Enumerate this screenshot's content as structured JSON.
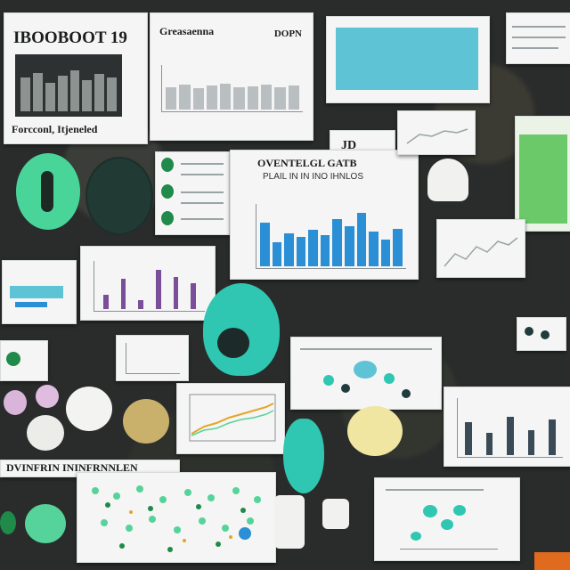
{
  "collage": {
    "panel_top_left": {
      "title": "IBOOBOOT 19",
      "caption": "Forcconl, Itjeneled"
    },
    "panel_top_mid": {
      "title_left": "Greasaenna",
      "title_right": "DOPN"
    },
    "panel_center": {
      "title": "OVENTELGL GATB",
      "subtitle": "PLAIL IN IN INO IHNLOS"
    },
    "panel_tag": {
      "label": "JD"
    },
    "bottom_banner": {
      "text": "DVINFRIN ININFRNNLEN"
    }
  },
  "colors": {
    "teal": "#2fc7b1",
    "mint": "#56d39a",
    "green": "#1f8a4a",
    "chart_blue": "#2b8fd6",
    "chart_purple": "#7a4e99"
  }
}
